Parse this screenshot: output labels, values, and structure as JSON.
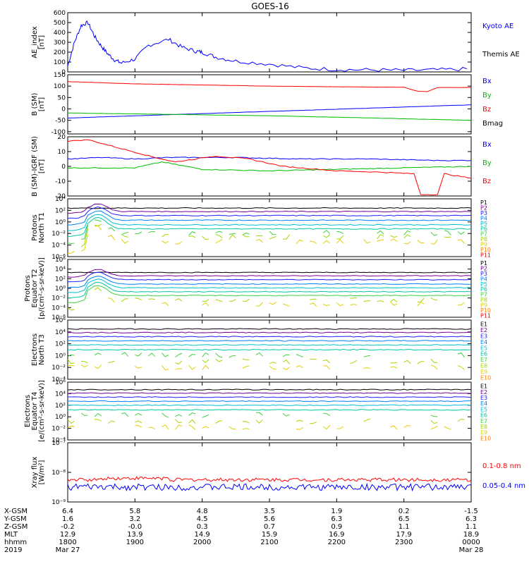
{
  "title": "GOES-16",
  "colors": {
    "axis": "#000000",
    "blue": "#0000ff",
    "red": "#ff0000",
    "green": "#00bb00",
    "channel_colors": [
      "#000000",
      "#7a0099",
      "#2020ff",
      "#0080ff",
      "#00c0d0",
      "#00c8a0",
      "#40d040",
      "#a0d800",
      "#e0d000",
      "#ff8000",
      "#e00000"
    ]
  },
  "chart_data": [
    {
      "type": "line",
      "id": "ae",
      "ylabel": [
        "AE_index",
        "[nT]"
      ],
      "ylim": [
        0,
        600
      ],
      "yticks": [
        "600",
        "500",
        "400",
        "300",
        "200",
        "100",
        "0"
      ],
      "ytick_values": [
        600,
        500,
        400,
        300,
        200,
        100,
        0
      ],
      "x_hours": [
        0,
        0.1,
        0.2,
        0.3,
        0.4,
        0.5,
        0.6,
        0.7,
        0.8,
        1.0,
        1.2,
        1.5,
        1.7,
        1.9,
        2.0,
        2.2,
        2.5,
        3.0,
        3.5,
        4.0,
        4.5,
        5.0,
        5.5,
        6.0
      ],
      "series": [
        {
          "name": "Kyoto AE",
          "color": "blue",
          "values": [
            60,
            300,
            470,
            500,
            360,
            260,
            180,
            120,
            90,
            130,
            270,
            330,
            250,
            210,
            200,
            150,
            110,
            80,
            40,
            25,
            20,
            15,
            20,
            30
          ]
        },
        {
          "name": "Themis AE",
          "color": "black",
          "values": [
            70,
            330,
            500,
            540,
            420,
            340,
            270,
            210,
            150,
            190,
            330,
            380,
            330,
            320,
            310,
            290,
            240,
            160,
            100,
            50,
            35,
            25,
            25,
            40
          ]
        }
      ]
    },
    {
      "type": "line",
      "id": "bsm",
      "ylabel": [
        "B (SM)",
        "[nT]"
      ],
      "ylim": [
        -110,
        150
      ],
      "yticks": [
        "150",
        "100",
        "50",
        "0",
        "-50",
        "-100"
      ],
      "ytick_values": [
        150,
        100,
        50,
        0,
        -50,
        -100
      ],
      "series": [
        {
          "name": "Bx",
          "color": "blue",
          "x_hours": [
            0,
            6
          ],
          "values": [
            -40,
            18
          ]
        },
        {
          "name": "By",
          "color": "green",
          "x_hours": [
            0,
            3,
            6
          ],
          "values": [
            -18,
            -30,
            -50
          ]
        },
        {
          "name": "Bz",
          "color": "red",
          "x_hours": [
            0,
            1,
            2,
            3,
            4,
            5,
            5.2,
            5.35,
            5.5,
            6
          ],
          "values": [
            120,
            110,
            105,
            100,
            97,
            95,
            78,
            76,
            94,
            94
          ]
        },
        {
          "name": "Bmag",
          "color": "black",
          "x_hours": [
            0,
            1,
            2,
            3,
            4,
            5,
            5.2,
            5.5,
            6
          ],
          "values": [
            125,
            118,
            112,
            108,
            105,
            102,
            100,
            100,
            100
          ]
        }
      ]
    },
    {
      "type": "line",
      "id": "bdiff",
      "ylabel": [
        "B (SM)-IGRF (SM)",
        "[nT]"
      ],
      "ylim": [
        -20,
        20
      ],
      "yticks": [
        "20",
        "10",
        "0",
        "-10",
        "-20"
      ],
      "ytick_values": [
        20,
        10,
        0,
        -10,
        -20
      ],
      "series": [
        {
          "name": "Bx",
          "color": "blue",
          "x_hours": [
            0,
            0.5,
            1,
            1.5,
            2.5,
            3.5,
            4.5,
            5.5,
            6
          ],
          "values": [
            5,
            6,
            5,
            6,
            6,
            5,
            5,
            4,
            4
          ]
        },
        {
          "name": "By",
          "color": "green",
          "x_hours": [
            0,
            1,
            1.4,
            2,
            3,
            4,
            5,
            6
          ],
          "values": [
            -1,
            -1,
            3,
            -2,
            -3,
            -2,
            -1,
            0
          ]
        },
        {
          "name": "Bz",
          "color": "red",
          "x_hours": [
            0,
            0.3,
            0.8,
            1.3,
            1.6,
            2.2,
            2.7,
            3.2,
            4,
            4.7,
            5.15,
            5.25,
            5.5,
            5.6,
            6
          ],
          "values": [
            17,
            18,
            12,
            6,
            3,
            7,
            5,
            0,
            -3,
            -4,
            -5,
            -19,
            -19,
            -5,
            -8
          ]
        }
      ]
    },
    {
      "type": "line",
      "id": "prot-t1",
      "log": true,
      "ylabel": [
        "Protons",
        "North T1"
      ],
      "ylim": [
        -6,
        4
      ],
      "yticks": [
        "10⁴",
        "10²",
        "10⁰",
        "10⁻²",
        "10⁻⁴",
        "10⁻⁶"
      ],
      "ytick_values": [
        4,
        2,
        0,
        -2,
        -4,
        -6
      ],
      "channels": [
        "P1",
        "P2",
        "P3",
        "P4",
        "P5",
        "P6",
        "P7",
        "P8",
        "P9",
        "P10",
        "P11"
      ],
      "levels_log10": [
        2.4,
        1.8,
        1.1,
        0.3,
        -0.5,
        -1.2,
        -1.9,
        -2.6,
        -3.4,
        null,
        null
      ]
    },
    {
      "type": "line",
      "id": "prot-t2",
      "log": true,
      "ylabel": [
        "Protons",
        "Equator T2",
        "[p/(cm²-s-sr-keV)]"
      ],
      "ylim": [
        -6,
        6
      ],
      "yticks": [
        "10⁶",
        "10⁴",
        "10²",
        "10⁰",
        "10⁻²",
        "10⁻⁴",
        "10⁻⁶"
      ],
      "ytick_values": [
        6,
        4,
        2,
        0,
        -2,
        -4,
        -6
      ],
      "channels": [
        "P1",
        "P2",
        "P3",
        "P4",
        "P5",
        "P6",
        "P7",
        "P8",
        "P9",
        "P10",
        "P11"
      ],
      "levels_log10": [
        3.3,
        2.6,
        1.8,
        0.9,
        0.1,
        -0.7,
        -1.5,
        -2.4,
        -3.3,
        null,
        null
      ]
    },
    {
      "type": "line",
      "id": "elec-t3",
      "log": true,
      "ylabel": [
        "Electrons",
        "North T3"
      ],
      "ylim": [
        -4,
        6
      ],
      "yticks": [
        "10⁶",
        "10⁴",
        "10²",
        "10⁰",
        "10⁻²",
        "10⁻⁴"
      ],
      "ytick_values": [
        6,
        4,
        2,
        0,
        -2,
        -4
      ],
      "channels": [
        "E1",
        "E2",
        "E3",
        "E4",
        "E5",
        "E6",
        "E7",
        "E8",
        "E9",
        "E10"
      ],
      "levels_log10": [
        4.5,
        3.9,
        3.2,
        2.5,
        1.8,
        1.0,
        0.1,
        -1.0,
        -2.0,
        null
      ]
    },
    {
      "type": "line",
      "id": "elec-t4",
      "log": true,
      "ylabel": [
        "Electrons",
        "Equator T4",
        "[e/(cm²-s-sr-keV)]"
      ],
      "ylim": [
        -4,
        6
      ],
      "yticks": [
        "10⁶",
        "10⁴",
        "10²",
        "10⁰",
        "10⁻²",
        "10⁻⁴"
      ],
      "ytick_values": [
        6,
        4,
        2,
        0,
        -2,
        -4
      ],
      "channels": [
        "E1",
        "E2",
        "E3",
        "E4",
        "E5",
        "E6",
        "E7",
        "E8",
        "E9",
        "E10"
      ],
      "levels_log10": [
        4.7,
        4.1,
        3.4,
        2.7,
        2.0,
        1.2,
        0.3,
        -0.8,
        -1.8,
        null
      ]
    },
    {
      "type": "line",
      "id": "xray",
      "log": true,
      "ylabel": [
        "Xray flux",
        "[W/m²]"
      ],
      "ylim": [
        -9,
        -7
      ],
      "yticks": [
        "10⁻⁷",
        "10⁻⁸",
        "10⁻⁹"
      ],
      "ytick_values": [
        -7,
        -8,
        -9
      ],
      "series": [
        {
          "name": "0.1-0.8 nm",
          "color": "red",
          "level_log10": -8.25
        },
        {
          "name": "0.05-0.4 nm",
          "color": "blue",
          "level_log10": -8.5
        }
      ]
    }
  ],
  "gap_hours": [
    1.98,
    2.12
  ],
  "footer": {
    "labels": [
      "X-GSM",
      "Y-GSM",
      "Z-GSM",
      "MLT",
      "hhmm",
      "2019"
    ],
    "columns": [
      [
        "6.4",
        "1.6",
        "-0.2",
        "12.9",
        "1800",
        "Mar 27"
      ],
      [
        "5.8",
        "3.2",
        "-0.0",
        "13.9",
        "1900",
        ""
      ],
      [
        "4.8",
        "4.5",
        "0.3",
        "14.9",
        "2000",
        ""
      ],
      [
        "3.5",
        "5.6",
        "0.7",
        "15.9",
        "2100",
        ""
      ],
      [
        "1.9",
        "6.3",
        "0.9",
        "16.9",
        "2200",
        ""
      ],
      [
        "0.2",
        "6.5",
        "1.1",
        "17.9",
        "2300",
        ""
      ],
      [
        "-1.5",
        "6.3",
        "1.1",
        "18.9",
        "0000",
        "Mar 28"
      ]
    ]
  }
}
